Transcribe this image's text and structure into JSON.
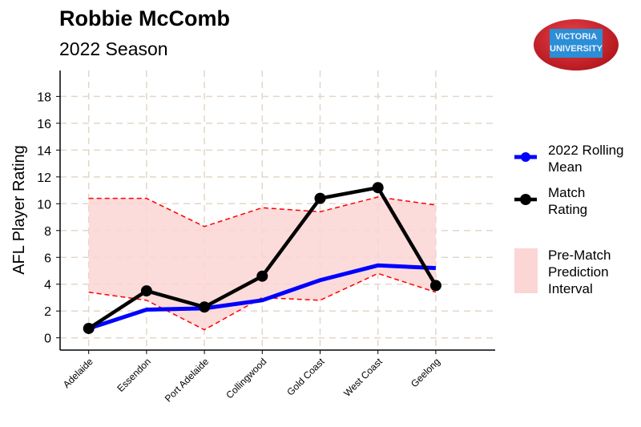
{
  "header": {
    "title": "Robbie McComb",
    "subtitle": "2022 Season"
  },
  "logo": {
    "line1": "VICTORIA",
    "line2": "UNIVERSITY"
  },
  "chart_data": {
    "type": "line",
    "title": "Robbie McComb",
    "subtitle": "2022 Season",
    "xlabel": "",
    "ylabel": "AFL Player Rating",
    "ylim": [
      0,
      18
    ],
    "yticks": [
      0,
      2,
      4,
      6,
      8,
      10,
      12,
      14,
      16,
      18
    ],
    "grid": true,
    "categories": [
      "Adelaide",
      "Essendon",
      "Port Adelaide",
      "Collingwood",
      "Gold Coast",
      "West Coast",
      "Geelong"
    ],
    "series": [
      {
        "name": "2022 Rolling Mean",
        "color": "#0000ff",
        "values": [
          0.7,
          2.1,
          2.2,
          2.8,
          4.3,
          5.4,
          5.2
        ]
      },
      {
        "name": "Match Rating",
        "color": "#000000",
        "values": [
          0.7,
          3.5,
          2.3,
          4.6,
          10.4,
          11.2,
          3.9
        ]
      }
    ],
    "interval": {
      "name": "Pre-Match Prediction Interval",
      "color": "#fcd5d5",
      "upper": [
        10.4,
        10.4,
        8.3,
        9.7,
        9.4,
        10.5,
        9.9
      ],
      "lower": [
        3.4,
        2.8,
        0.6,
        3.0,
        2.8,
        4.8,
        3.4
      ]
    },
    "legend": {
      "placement": "right",
      "items": [
        {
          "line1": "2022 Rolling",
          "line2": "Mean"
        },
        {
          "line1": "Match",
          "line2": "Rating"
        },
        {
          "line1": "Pre-Match",
          "line2": "Prediction",
          "line3": "Interval"
        }
      ]
    }
  }
}
